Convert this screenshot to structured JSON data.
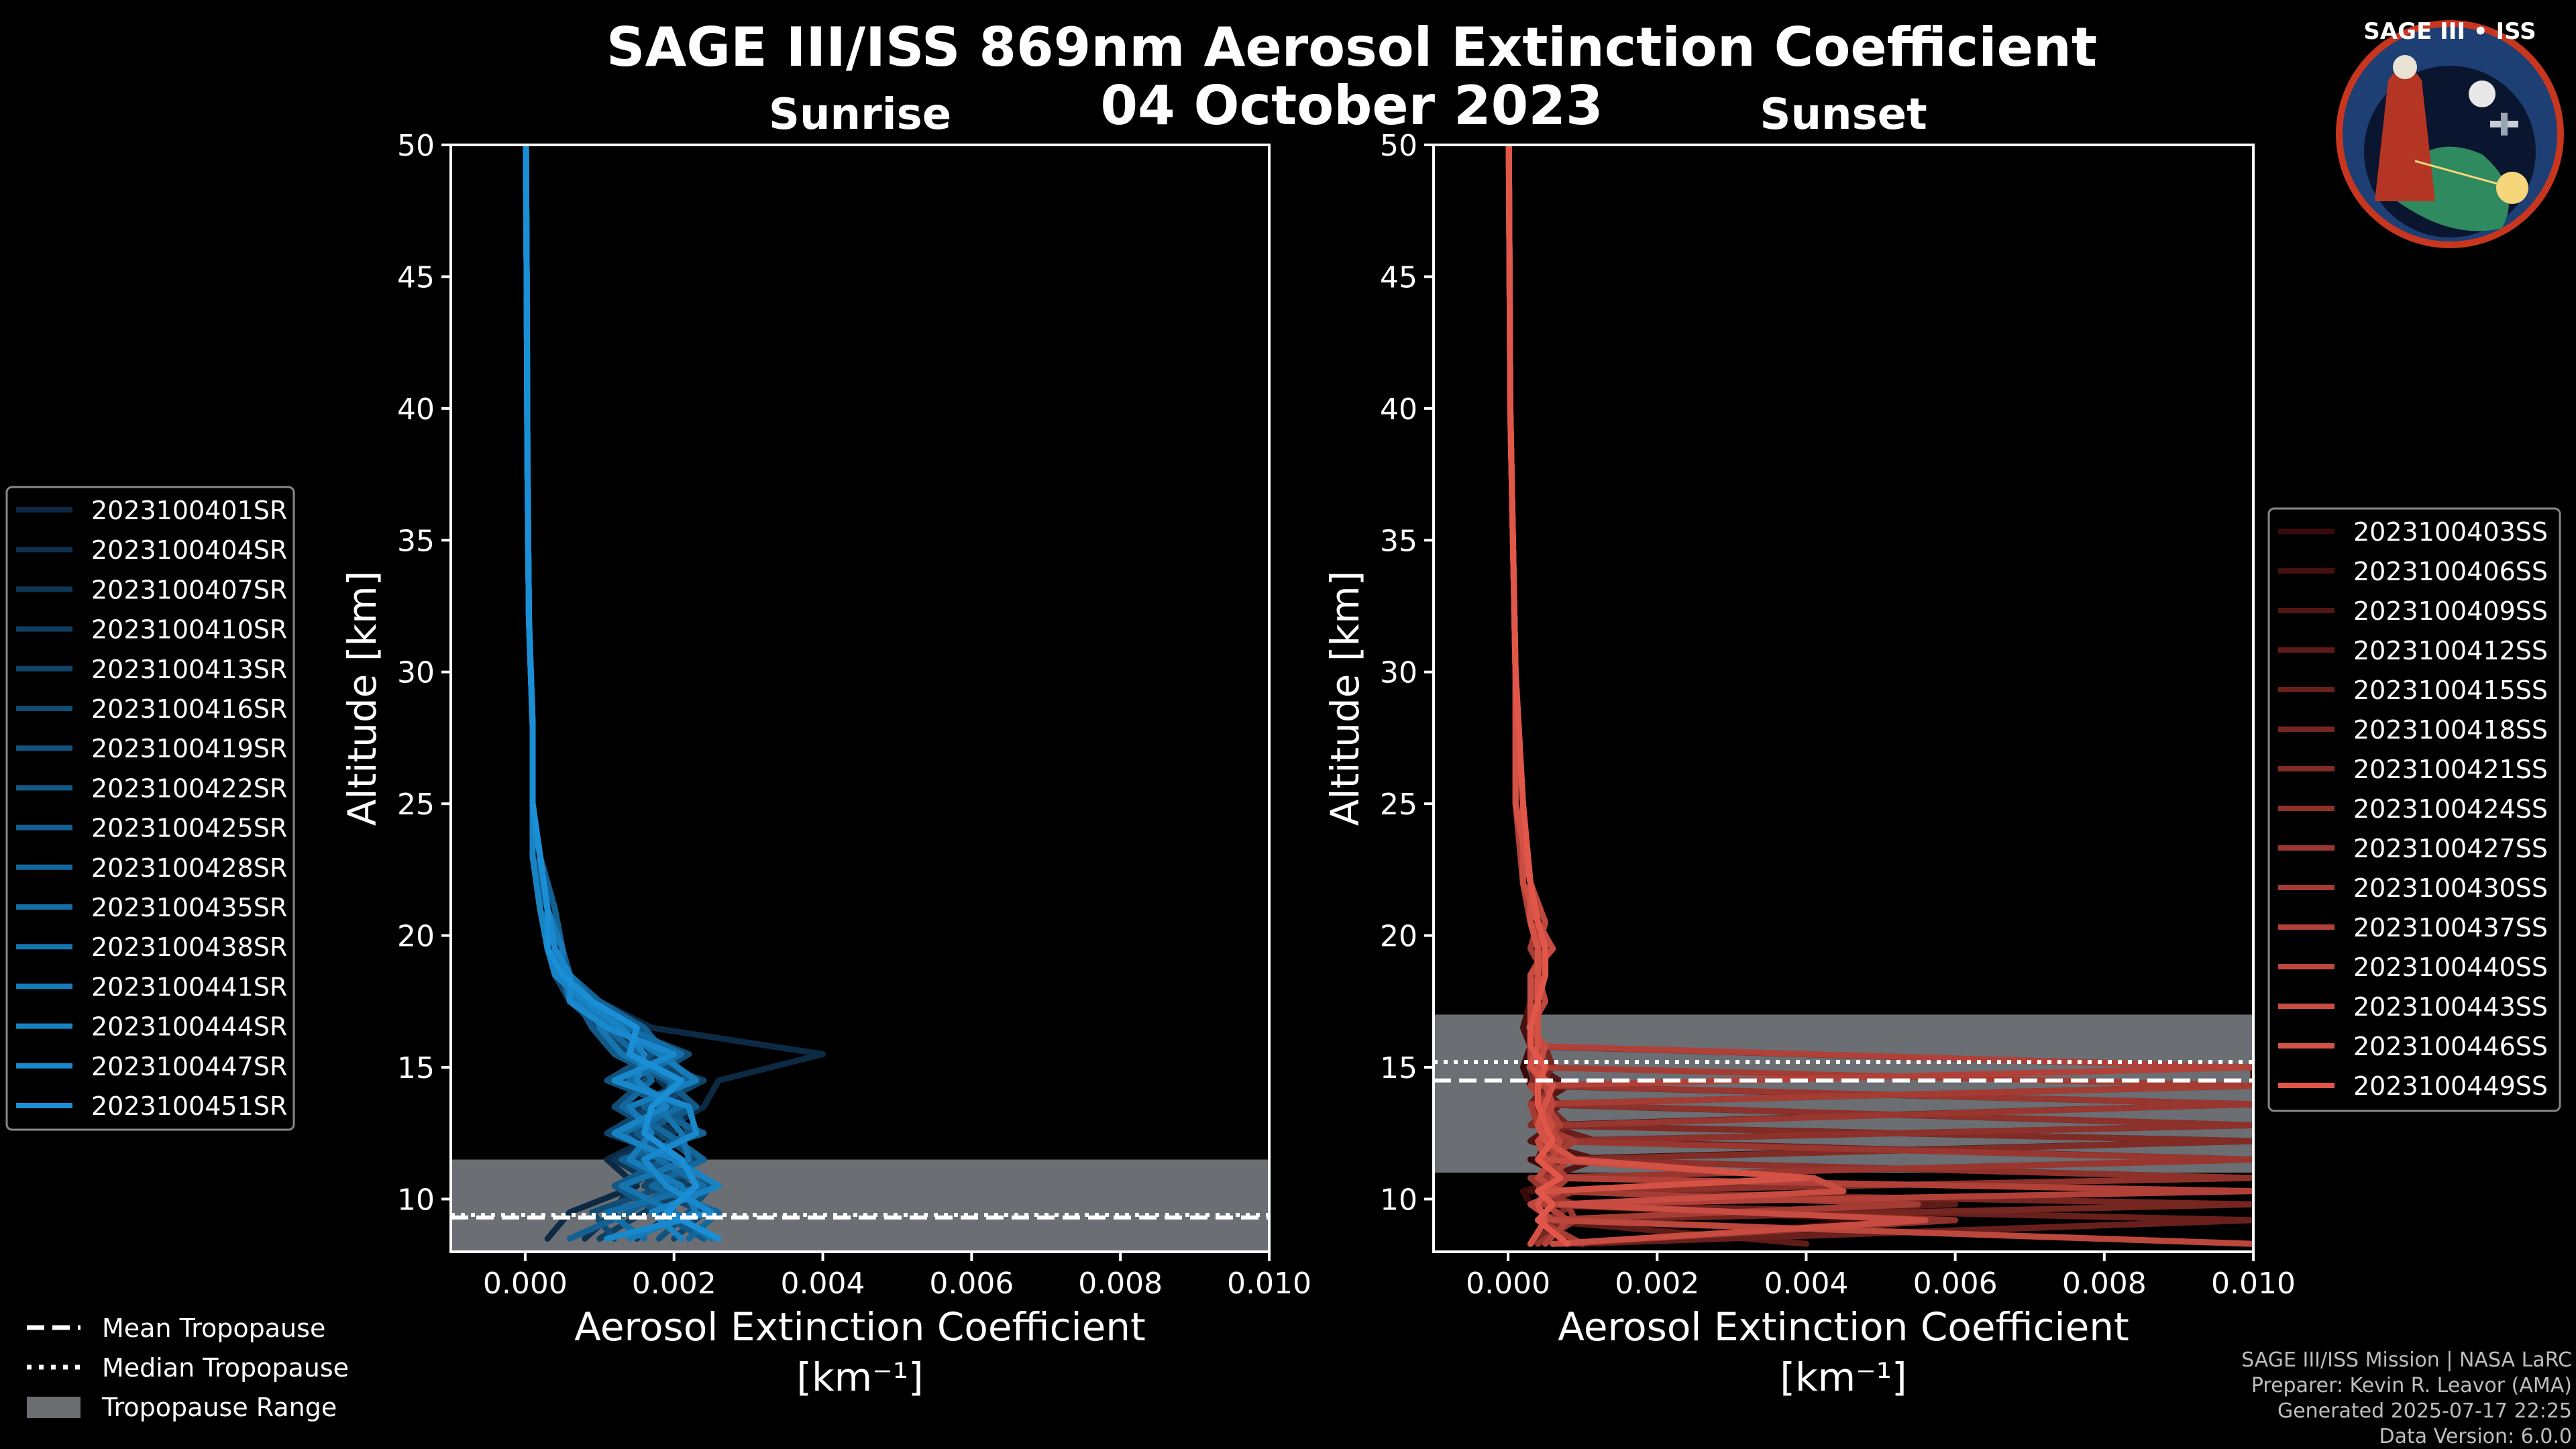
{
  "title": "SAGE III/ISS 869nm Aerosol Extinction Coefficient",
  "date": "04 October 2023",
  "logo": {
    "text": "SAGE III • ISS"
  },
  "colors": {
    "sunrise": "#1a8fd6",
    "sunset": "#e0574a",
    "tropo_band": "#6b6e73",
    "background": "#000000"
  },
  "tropopause_legend": [
    "Mean Tropopause",
    "Median Tropopause",
    "Tropopause Range"
  ],
  "credits": [
    "SAGE III/ISS Mission | NASA LaRC",
    "Preparer: Kevin R. Leavor (AMA)",
    "Generated 2025-07-17 22:25",
    "Data Version: 6.0.0"
  ],
  "chart_data": [
    {
      "type": "line",
      "title": "Sunrise",
      "xlabel": "Aerosol Extinction Coefficient",
      "xunit": "[km⁻¹]",
      "ylabel": "Altitude [km]",
      "xlim": [
        -0.001,
        0.01
      ],
      "ylim": [
        8,
        50
      ],
      "xticks": [
        "0.000",
        "0.002",
        "0.004",
        "0.006",
        "0.008",
        "0.010"
      ],
      "yticks": [
        "10",
        "15",
        "20",
        "25",
        "30",
        "35",
        "40",
        "45",
        "50"
      ],
      "tropopause": {
        "mean": 9.3,
        "median": 9.4,
        "range": [
          8,
          11.5
        ]
      },
      "altitudes": [
        8.5,
        9.5,
        10.5,
        11.5,
        12.5,
        13.5,
        14.5,
        15.5,
        16.5,
        17.5,
        18.5,
        19.5,
        21,
        23,
        25,
        28,
        32,
        38,
        45,
        50
      ],
      "series": [
        {
          "name": "2023100401SR",
          "values": [
            0.0003,
            0.0006,
            0.0015,
            0.0011,
            0.0018,
            0.0024,
            0.0026,
            0.004,
            0.0017,
            0.001,
            0.0005,
            0.0004,
            0.0003,
            0.0001,
            0.0001,
            0.0001,
            5e-05,
            3e-05,
            2e-05,
            1e-05
          ]
        },
        {
          "name": "2023100404SR",
          "values": [
            0.0008,
            0.0012,
            0.0014,
            0.002,
            0.0016,
            0.0022,
            0.0018,
            0.002,
            0.0014,
            0.0008,
            0.0006,
            0.0005,
            0.0004,
            0.0002,
            0.0001,
            0.0001,
            5e-05,
            3e-05,
            2e-05,
            1e-05
          ]
        },
        {
          "name": "2023100407SR",
          "values": [
            0.0015,
            0.002,
            0.0018,
            0.0012,
            0.002,
            0.0015,
            0.0021,
            0.0016,
            0.0011,
            0.0009,
            0.0005,
            0.0003,
            0.0003,
            0.0002,
            0.0001,
            0.0001,
            5e-05,
            3e-05,
            2e-05,
            1e-05
          ]
        },
        {
          "name": "2023100410SR",
          "values": [
            0.001,
            0.0016,
            0.0022,
            0.0017,
            0.0014,
            0.0019,
            0.0013,
            0.0018,
            0.0012,
            0.0007,
            0.0006,
            0.0004,
            0.0002,
            0.0002,
            0.0001,
            0.0001,
            5e-05,
            3e-05,
            2e-05,
            1e-05
          ]
        },
        {
          "name": "2023100413SR",
          "values": [
            0.002,
            0.0024,
            0.0016,
            0.0021,
            0.0011,
            0.0017,
            0.0024,
            0.0014,
            0.001,
            0.0006,
            0.0004,
            0.0004,
            0.0003,
            0.0001,
            0.0001,
            0.0001,
            5e-05,
            3e-05,
            2e-05,
            1e-05
          ]
        },
        {
          "name": "2023100416SR",
          "values": [
            0.0012,
            0.0009,
            0.0019,
            0.0023,
            0.0018,
            0.0012,
            0.0016,
            0.0022,
            0.0013,
            0.0008,
            0.0005,
            0.0003,
            0.0003,
            0.0002,
            0.0001,
            0.0001,
            5e-05,
            3e-05,
            2e-05,
            1e-05
          ]
        },
        {
          "name": "2023100419SR",
          "values": [
            0.0018,
            0.0022,
            0.0025,
            0.0015,
            0.0022,
            0.002,
            0.0011,
            0.0017,
            0.0015,
            0.0009,
            0.0006,
            0.0004,
            0.0002,
            0.0002,
            0.0001,
            0.0001,
            5e-05,
            3e-05,
            2e-05,
            1e-05
          ]
        },
        {
          "name": "2023100422SR",
          "values": [
            0.0024,
            0.0018,
            0.0012,
            0.0019,
            0.0015,
            0.0023,
            0.0019,
            0.0012,
            0.0009,
            0.0007,
            0.0005,
            0.0003,
            0.0003,
            0.0001,
            0.0001,
            0.0001,
            5e-05,
            3e-05,
            2e-05,
            1e-05
          ]
        },
        {
          "name": "2023100425SR",
          "values": [
            0.0006,
            0.0014,
            0.002,
            0.0013,
            0.0024,
            0.0016,
            0.0022,
            0.0019,
            0.0016,
            0.001,
            0.0006,
            0.0005,
            0.0004,
            0.0002,
            0.0001,
            0.0001,
            5e-05,
            3e-05,
            2e-05,
            1e-05
          ]
        },
        {
          "name": "2023100428SR",
          "values": [
            0.0022,
            0.0026,
            0.0017,
            0.0024,
            0.0019,
            0.0013,
            0.0017,
            0.0015,
            0.0011,
            0.0008,
            0.0004,
            0.0004,
            0.0003,
            0.0002,
            0.0001,
            0.0001,
            5e-05,
            3e-05,
            2e-05,
            1e-05
          ]
        },
        {
          "name": "2023100435SR",
          "values": [
            0.0016,
            0.0011,
            0.0024,
            0.0018,
            0.0013,
            0.0021,
            0.0014,
            0.0021,
            0.0014,
            0.0006,
            0.0005,
            0.0003,
            0.0002,
            0.0001,
            0.0001,
            0.0001,
            5e-05,
            3e-05,
            2e-05,
            1e-05
          ]
        },
        {
          "name": "2023100438SR",
          "values": [
            0.0025,
            0.002,
            0.0013,
            0.0022,
            0.0021,
            0.0018,
            0.002,
            0.0013,
            0.001,
            0.0009,
            0.0006,
            0.0004,
            0.0003,
            0.0002,
            0.0001,
            0.0001,
            5e-05,
            3e-05,
            2e-05,
            1e-05
          ]
        },
        {
          "name": "2023100441SR",
          "values": [
            0.0014,
            0.0023,
            0.0021,
            0.0014,
            0.0017,
            0.0014,
            0.0023,
            0.0018,
            0.0012,
            0.0007,
            0.0005,
            0.0005,
            0.0003,
            0.0002,
            0.0001,
            0.0001,
            5e-05,
            3e-05,
            2e-05,
            1e-05
          ]
        },
        {
          "name": "2023100444SR",
          "values": [
            0.0021,
            0.0017,
            0.0026,
            0.002,
            0.0012,
            0.0019,
            0.0015,
            0.0016,
            0.0013,
            0.0008,
            0.0004,
            0.0003,
            0.0002,
            0.0001,
            0.0001,
            0.0001,
            5e-05,
            3e-05,
            2e-05,
            1e-05
          ]
        },
        {
          "name": "2023100447SR",
          "values": [
            0.0011,
            0.0025,
            0.0019,
            0.0016,
            0.0023,
            0.0022,
            0.0012,
            0.002,
            0.0011,
            0.0006,
            0.0006,
            0.0004,
            0.0003,
            0.0002,
            0.0001,
            0.0001,
            5e-05,
            3e-05,
            2e-05,
            1e-05
          ]
        },
        {
          "name": "2023100451SR",
          "values": [
            0.0026,
            0.0019,
            0.0023,
            0.0021,
            0.0016,
            0.0017,
            0.0021,
            0.0014,
            0.0015,
            0.0009,
            0.0005,
            0.0003,
            0.0003,
            0.0002,
            0.0001,
            0.0001,
            5e-05,
            3e-05,
            2e-05,
            1e-05
          ]
        }
      ]
    },
    {
      "type": "line",
      "title": "Sunset",
      "xlabel": "Aerosol Extinction Coefficient",
      "xunit": "[km⁻¹]",
      "ylabel": "Altitude [km]",
      "xlim": [
        -0.001,
        0.01
      ],
      "ylim": [
        8,
        50
      ],
      "xticks": [
        "0.000",
        "0.002",
        "0.004",
        "0.006",
        "0.008",
        "0.010"
      ],
      "yticks": [
        "10",
        "15",
        "20",
        "25",
        "30",
        "35",
        "40",
        "45",
        "50"
      ],
      "tropopause": {
        "mean": 14.5,
        "median": 15.2,
        "range": [
          11,
          17
        ]
      },
      "altitudes": [
        8.3,
        9.2,
        9.8,
        10.3,
        10.8,
        11.5,
        12.2,
        12.8,
        13.6,
        14.3,
        15.0,
        15.8,
        16.5,
        17.5,
        18.5,
        19.5,
        20.5,
        22,
        25,
        30,
        40,
        50
      ],
      "series": [
        {
          "name": "2023100403SS",
          "values": [
            0.0012,
            0.005,
            0.0003,
            0.0002,
            0.0008,
            0.0003,
            0.01,
            0.0004,
            0.01,
            0.0003,
            0.0002,
            0.0003,
            0.0003,
            0.0004,
            0.0005,
            0.0004,
            0.0004,
            0.0003,
            0.0002,
            0.0001,
            3e-05,
            1e-05
          ]
        },
        {
          "name": "2023100406SS",
          "values": [
            0.01,
            0.0008,
            0.01,
            0.0003,
            0.0006,
            0.0004,
            0.0005,
            0.01,
            0.0003,
            0.01,
            0.01,
            0.0003,
            0.0002,
            0.0003,
            0.0004,
            0.0005,
            0.0003,
            0.0002,
            0.0001,
            0.0001,
            3e-05,
            1e-05
          ]
        },
        {
          "name": "2023100409SS",
          "values": [
            0.0006,
            0.01,
            0.0004,
            0.01,
            0.0005,
            0.0012,
            0.0003,
            0.0006,
            0.0004,
            0.0008,
            0.0004,
            0.0004,
            0.0003,
            0.0004,
            0.0003,
            0.0006,
            0.0004,
            0.0003,
            0.0002,
            0.0001,
            3e-05,
            1e-05
          ]
        },
        {
          "name": "2023100412SS",
          "values": [
            0.004,
            0.0004,
            0.006,
            0.0008,
            0.01,
            0.0005,
            0.0008,
            0.0004,
            0.0007,
            0.0004,
            0.0003,
            0.0004,
            0.0003,
            0.0005,
            0.0004,
            0.0004,
            0.0003,
            0.0002,
            0.0002,
            0.0001,
            3e-05,
            1e-05
          ]
        },
        {
          "name": "2023100415SS",
          "values": [
            0.0009,
            0.01,
            0.0007,
            0.0005,
            0.0004,
            0.01,
            0.0012,
            0.0005,
            0.0003,
            0.0005,
            0.0003,
            0.0003,
            0.0004,
            0.0003,
            0.0005,
            0.0003,
            0.0004,
            0.0003,
            0.0001,
            0.0001,
            3e-05,
            1e-05
          ]
        },
        {
          "name": "2023100418SS",
          "values": [
            0.0003,
            0.0007,
            0.01,
            0.0004,
            0.0007,
            0.0006,
            0.0004,
            0.0008,
            0.0005,
            0.0004,
            0.0006,
            0.0005,
            0.0003,
            0.0004,
            0.0003,
            0.0005,
            0.0003,
            0.0002,
            0.0002,
            0.0001,
            3e-05,
            1e-05
          ]
        },
        {
          "name": "2023100421SS",
          "values": [
            0.01,
            0.0005,
            0.0009,
            0.0004,
            0.0005,
            0.0007,
            0.01,
            0.0003,
            0.0006,
            0.0003,
            0.0004,
            0.0004,
            0.0003,
            0.0003,
            0.0004,
            0.0004,
            0.0005,
            0.0003,
            0.0002,
            0.0001,
            3e-05,
            1e-05
          ]
        },
        {
          "name": "2023100424SS",
          "values": [
            0.0007,
            0.006,
            0.0004,
            0.0009,
            0.01,
            0.0004,
            0.0006,
            0.01,
            0.0004,
            0.0006,
            0.0003,
            0.0003,
            0.0004,
            0.0004,
            0.0003,
            0.0006,
            0.0004,
            0.0003,
            0.0001,
            0.0001,
            3e-05,
            1e-05
          ]
        },
        {
          "name": "2023100427SS",
          "values": [
            0.0004,
            0.0009,
            0.0008,
            0.0005,
            0.0003,
            0.01,
            0.0005,
            0.0006,
            0.01,
            0.0004,
            0.0005,
            0.0004,
            0.0003,
            0.0005,
            0.0004,
            0.0004,
            0.0003,
            0.0002,
            0.0002,
            0.0001,
            3e-05,
            1e-05
          ]
        },
        {
          "name": "2023100430SS",
          "values": [
            0.001,
            0.0004,
            0.0055,
            0.0006,
            0.0008,
            0.0005,
            0.0009,
            0.0004,
            0.0003,
            0.01,
            0.0004,
            0.0003,
            0.0003,
            0.0003,
            0.0005,
            0.0003,
            0.0004,
            0.0003,
            0.0002,
            0.0001,
            3e-05,
            1e-05
          ]
        },
        {
          "name": "2023100437SS",
          "values": [
            0.0005,
            0.0008,
            0.0005,
            0.01,
            0.0006,
            0.0008,
            0.0004,
            0.0007,
            0.0005,
            0.0003,
            0.01,
            0.0004,
            0.0004,
            0.0004,
            0.0003,
            0.0005,
            0.0003,
            0.0002,
            0.0001,
            0.0001,
            3e-05,
            1e-05
          ]
        },
        {
          "name": "2023100440SS",
          "values": [
            0.01,
            0.0006,
            0.0003,
            0.0007,
            0.0004,
            0.0006,
            0.0007,
            0.0005,
            0.0006,
            0.0005,
            0.0003,
            0.0003,
            0.0003,
            0.0005,
            0.0004,
            0.0004,
            0.0005,
            0.0003,
            0.0002,
            0.0001,
            3e-05,
            1e-05
          ]
        },
        {
          "name": "2023100443SS",
          "values": [
            0.0006,
            0.0056,
            0.0007,
            0.0045,
            0.0041,
            0.0005,
            0.0004,
            0.0006,
            0.0004,
            0.0004,
            0.0004,
            0.0005,
            0.0003,
            0.0003,
            0.0003,
            0.0006,
            0.0004,
            0.0002,
            0.0002,
            0.0001,
            3e-05,
            1e-05
          ]
        },
        {
          "name": "2023100446SS",
          "values": [
            0.0003,
            0.0005,
            0.0004,
            0.0005,
            0.004,
            0.0009,
            0.0005,
            0.0004,
            0.0005,
            0.0006,
            0.0003,
            0.0004,
            0.0004,
            0.0004,
            0.0004,
            0.0004,
            0.0003,
            0.0003,
            0.0001,
            0.0001,
            3e-05,
            1e-05
          ]
        },
        {
          "name": "2023100449SS",
          "values": [
            0.0008,
            0.0004,
            0.0006,
            0.0004,
            0.0007,
            0.0004,
            0.0006,
            0.0005,
            0.0004,
            0.0004,
            0.0005,
            0.0003,
            0.0003,
            0.0004,
            0.0005,
            0.0005,
            0.0004,
            0.0003,
            0.0002,
            0.0001,
            3e-05,
            1e-05
          ]
        }
      ]
    }
  ]
}
